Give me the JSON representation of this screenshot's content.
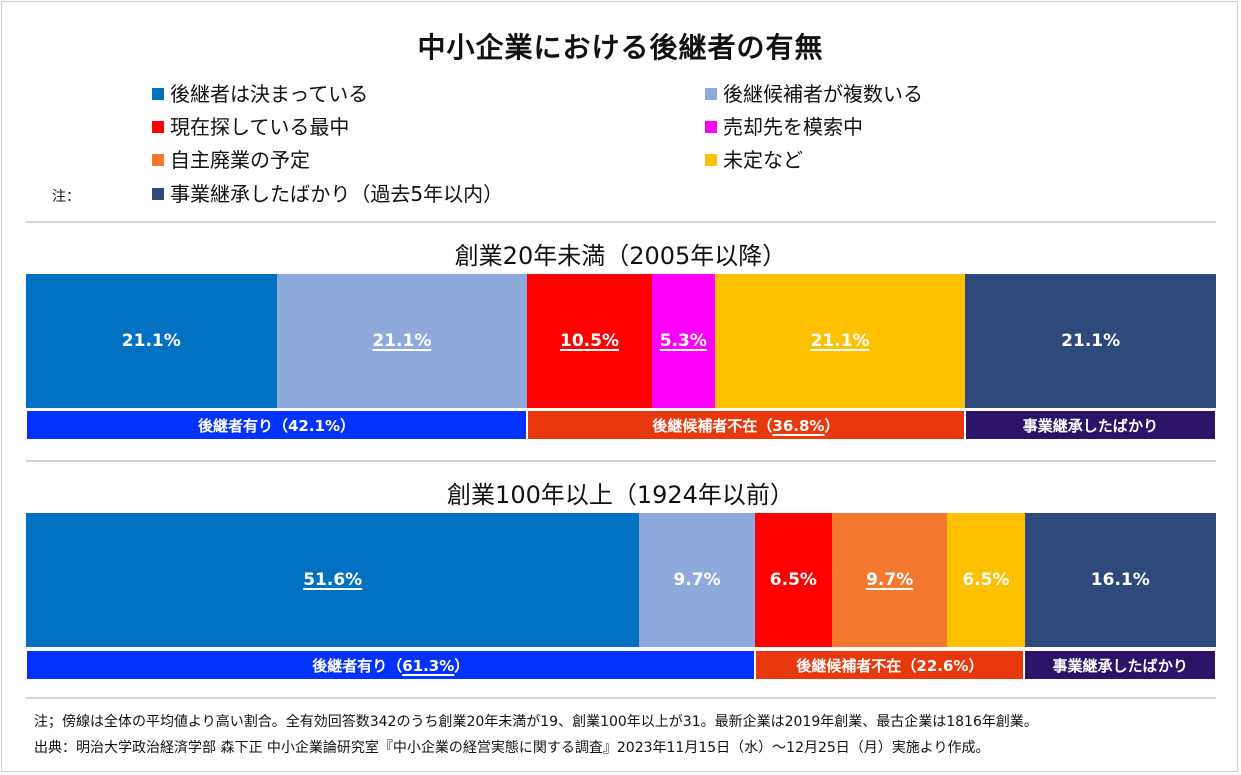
{
  "chart_data": {
    "type": "bar",
    "title": "中小企業における後継者の有無",
    "legend": {
      "note_label": "注：",
      "items": [
        {
          "name": "後継者は決まっている",
          "color": "#0070C0"
        },
        {
          "name": "後継候補者が複数いる",
          "color": "#8EA9DB"
        },
        {
          "name": "現在探している最中",
          "color": "#FF0000"
        },
        {
          "name": "売却先を模索中",
          "color": "#FF00FF"
        },
        {
          "name": "自主廃業の予定",
          "color": "#F4782F"
        },
        {
          "name": "未定など",
          "color": "#FFC000"
        },
        {
          "name": "事業継承したばかり（過去5年以内）",
          "color": "#2E4A7D"
        }
      ]
    },
    "charts": [
      {
        "subtitle": "創業20年未満（2005年以降）",
        "segments": [
          {
            "category": "後継者は決まっている",
            "value": 21.1,
            "label": "21.1%",
            "underline": false
          },
          {
            "category": "後継候補者が複数いる",
            "value": 21.1,
            "label": "21.1%",
            "underline": true
          },
          {
            "category": "現在探している最中",
            "value": 10.5,
            "label": "10.5%",
            "underline": true
          },
          {
            "category": "売却先を模索中",
            "value": 5.3,
            "label": "5.3%",
            "underline": true
          },
          {
            "category": "未定など",
            "value": 21.1,
            "label": "21.1%",
            "underline": true
          },
          {
            "category": "事業継承したばかり（過去5年以内）",
            "value": 21.1,
            "label": "21.1%",
            "underline": false
          }
        ],
        "groups": [
          {
            "pre": "後継者有り（",
            "value_text": "42.1%",
            "post": "）",
            "value": 42.1,
            "color": "#0433FF",
            "underline": false
          },
          {
            "pre": "後継候補者不在（",
            "value_text": "36.8%",
            "post": "）",
            "value": 36.8,
            "color": "#E8380D",
            "underline": true
          },
          {
            "pre": "",
            "value_text": "事業継承したばかり",
            "post": "",
            "value": 21.1,
            "color": "#2B1467",
            "underline": false
          }
        ]
      },
      {
        "subtitle": "創業100年以上（1924年以前）",
        "segments": [
          {
            "category": "後継者は決まっている",
            "value": 51.6,
            "label": "51.6%",
            "underline": true
          },
          {
            "category": "後継候補者が複数いる",
            "value": 9.7,
            "label": "9.7%",
            "underline": false
          },
          {
            "category": "現在探している最中",
            "value": 6.5,
            "label": "6.5%",
            "underline": false
          },
          {
            "category": "自主廃業の予定",
            "value": 9.7,
            "label": "9.7%",
            "underline": true
          },
          {
            "category": "未定など",
            "value": 6.5,
            "label": "6.5%",
            "underline": false
          },
          {
            "category": "事業継承したばかり（過去5年以内）",
            "value": 16.1,
            "label": "16.1%",
            "underline": false
          }
        ],
        "groups": [
          {
            "pre": "後継者有り（",
            "value_text": "61.3%",
            "post": "）",
            "value": 61.3,
            "color": "#0433FF",
            "underline": true
          },
          {
            "pre": "後継候補者不在（",
            "value_text": "22.6%",
            "post": "）",
            "value": 22.6,
            "color": "#E8380D",
            "underline": false
          },
          {
            "pre": "",
            "value_text": "事業継承したばかり",
            "post": "",
            "value": 16.1,
            "color": "#2B1467",
            "underline": false
          }
        ]
      }
    ]
  },
  "footer": {
    "note": "注；傍線は全体の平均値より高い割合。全有効回答数342のうち創業20年未満が19、創業100年以上が31。最新企業は2019年創業、最古企業は1816年創業。",
    "source": "出典：明治大学政治経済学部 森下正 中小企業論研究室『中小企業の経営実態に関する調査』2023年11月15日（水）～12月25日（月）実施より作成。"
  }
}
